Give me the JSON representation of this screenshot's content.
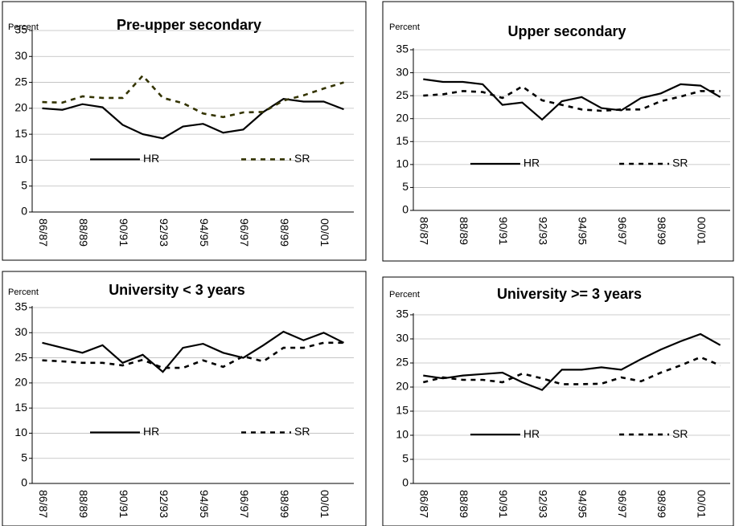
{
  "chart_data": [
    {
      "type": "line",
      "title": "Pre-upper secondary",
      "y_label": "Percent",
      "categories": [
        "86/87",
        null,
        "88/89",
        null,
        "90/91",
        null,
        "92/93",
        null,
        "94/95",
        null,
        "96/97",
        null,
        "98/99",
        null,
        "00/01",
        null
      ],
      "series": [
        {
          "name": "HR",
          "color": "#000000",
          "style": "solid",
          "values": [
            20,
            19.7,
            20.8,
            20.2,
            16.8,
            15,
            14.2,
            16.5,
            17,
            15.3,
            15.9,
            19.3,
            21.8,
            21.3,
            21.3,
            19.8
          ]
        },
        {
          "name": "SR",
          "color": "#333300",
          "style": "dashed",
          "values": [
            21.2,
            21.1,
            22.3,
            22,
            22,
            26.3,
            22,
            21,
            19,
            18.3,
            19.2,
            19.3,
            21.5,
            22.5,
            23.8,
            25
          ]
        }
      ],
      "ylim": [
        0,
        35
      ],
      "yticks": [
        0,
        5,
        10,
        15,
        20,
        25,
        30,
        35
      ],
      "grid": true,
      "legend": "center"
    },
    {
      "type": "line",
      "title": "Upper secondary",
      "y_label": "Percent",
      "categories": [
        "86/87",
        null,
        "88/89",
        null,
        "90/91",
        null,
        "92/93",
        null,
        "94/95",
        null,
        "96/97",
        null,
        "98/99",
        null,
        "00/01",
        null
      ],
      "series": [
        {
          "name": "HR",
          "color": "#000000",
          "style": "solid",
          "values": [
            28.6,
            28,
            28,
            27.5,
            23,
            23.5,
            19.8,
            23.8,
            24.7,
            22.3,
            21.8,
            24.5,
            25.5,
            27.5,
            27.2,
            24.7
          ]
        },
        {
          "name": "SR",
          "color": "#000000",
          "style": "dashed",
          "values": [
            25,
            25.3,
            26,
            25.8,
            24.5,
            27,
            24,
            23,
            22,
            21.7,
            22,
            22,
            23.8,
            24.8,
            26,
            26
          ]
        }
      ],
      "ylim": [
        0,
        35
      ],
      "yticks": [
        0,
        5,
        10,
        15,
        20,
        25,
        30,
        35
      ],
      "grid": true,
      "legend": "center"
    },
    {
      "type": "line",
      "title": "University < 3 years",
      "y_label": "Percent",
      "categories": [
        "86/87",
        null,
        "88/89",
        null,
        "90/91",
        null,
        "92/93",
        null,
        "94/95",
        null,
        "96/97",
        null,
        "98/99",
        null,
        "00/01",
        null
      ],
      "series": [
        {
          "name": "HR",
          "color": "#000000",
          "style": "solid",
          "values": [
            28,
            27,
            26,
            27.5,
            24,
            25.6,
            22.2,
            27,
            27.8,
            26,
            25,
            27.5,
            30.2,
            28.5,
            30,
            28
          ]
        },
        {
          "name": "SR",
          "color": "#000000",
          "style": "dashed",
          "values": [
            24.5,
            24.3,
            24,
            24,
            23.5,
            24.6,
            23,
            23,
            24.5,
            23.2,
            25.3,
            24.3,
            27,
            27,
            28,
            28
          ]
        }
      ],
      "ylim": [
        0,
        35
      ],
      "yticks": [
        0,
        5,
        10,
        15,
        20,
        25,
        30,
        35
      ],
      "grid": true,
      "legend": "center"
    },
    {
      "type": "line",
      "title": "University >= 3 years",
      "y_label": "Percent",
      "categories": [
        "86/87",
        null,
        "88/89",
        null,
        "90/91",
        null,
        "92/93",
        null,
        "94/95",
        null,
        "96/97",
        null,
        "98/99",
        null,
        "00/01",
        null
      ],
      "series": [
        {
          "name": "HR",
          "color": "#000000",
          "style": "solid",
          "values": [
            22.4,
            21.8,
            22.4,
            22.7,
            23,
            21,
            19.4,
            23.6,
            23.6,
            24.1,
            23.6,
            25.8,
            27.8,
            29.5,
            31,
            28.7
          ]
        },
        {
          "name": "SR",
          "color": "#000000",
          "style": "dashed",
          "values": [
            21,
            22,
            21.5,
            21.5,
            21,
            22.8,
            21.8,
            20.6,
            20.6,
            20.7,
            22,
            21.2,
            23,
            24.5,
            26.2,
            24.5
          ]
        }
      ],
      "ylim": [
        0,
        35
      ],
      "yticks": [
        0,
        5,
        10,
        15,
        20,
        25,
        30,
        35
      ],
      "grid": true,
      "legend": "center"
    }
  ]
}
